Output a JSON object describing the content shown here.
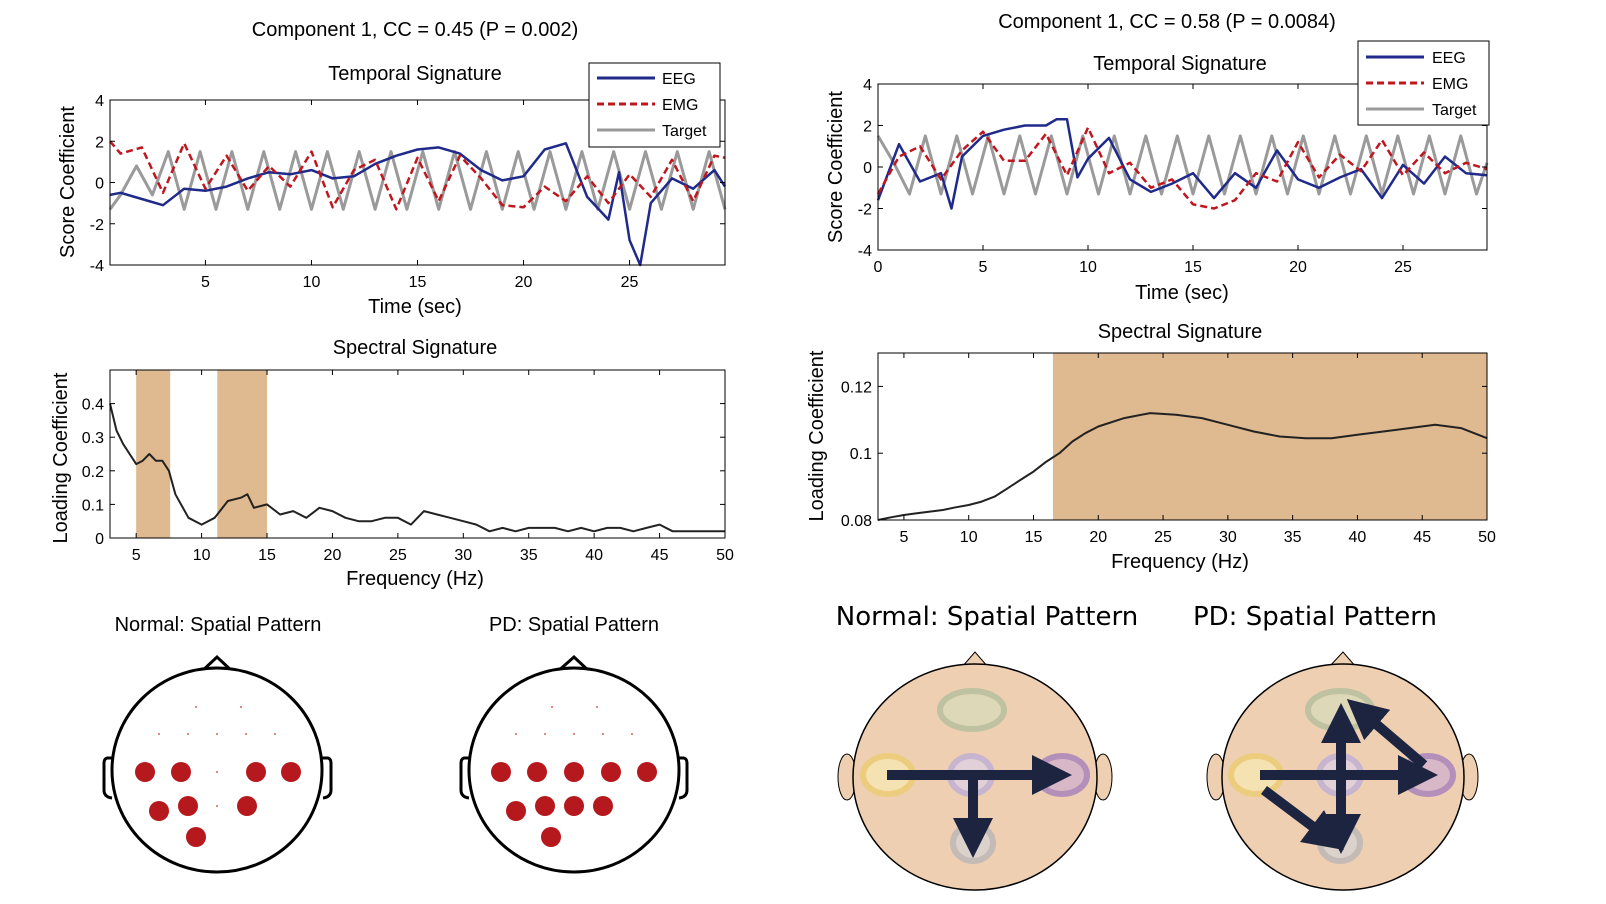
{
  "colors": {
    "eeg": "#1f2a8a",
    "emg": "#c0161e",
    "target": "#9a9a9a",
    "band": "#dfb98f",
    "electrode": "#b5191d",
    "head_fill": "#efcfb1",
    "arrow": "#1c2440"
  },
  "left": {
    "title": "Component 1, CC = 0.45 (P = 0.002)",
    "temporal": {
      "title": "Temporal Signature",
      "xlabel": "Time (sec)",
      "ylabel": "Score Coefficient",
      "xticks": [
        "5",
        "10",
        "15",
        "20",
        "25"
      ],
      "yticks": [
        "4",
        "2",
        "0",
        "-2",
        "-4"
      ],
      "legend": [
        "EEG",
        "EMG",
        "Target"
      ]
    },
    "spectral": {
      "title": "Spectral Signature",
      "xlabel": "Frequency (Hz)",
      "ylabel": "Loading Coefficient",
      "xticks": [
        "5",
        "10",
        "15",
        "20",
        "25",
        "30",
        "35",
        "40",
        "45",
        "50"
      ],
      "yticks": [
        "0.4",
        "0.3",
        "0.2",
        "0.1",
        "0"
      ]
    },
    "maps": {
      "normal": "Normal: Spatial Pattern",
      "pd": "PD: Spatial Pattern"
    }
  },
  "right": {
    "title": "Component 1, CC = 0.58 (P = 0.0084)",
    "temporal": {
      "title": "Temporal Signature",
      "xlabel": "Time (sec)",
      "ylabel": "Score Coefficient",
      "xticks": [
        "0",
        "5",
        "10",
        "15",
        "20",
        "25"
      ],
      "yticks": [
        "4",
        "2",
        "0",
        "-2",
        "-4"
      ],
      "legend": [
        "EEG",
        "EMG",
        "Target"
      ]
    },
    "spectral": {
      "title": "Spectral Signature",
      "xlabel": "Frequency (Hz)",
      "ylabel": "Loading Coefficient",
      "xticks": [
        "5",
        "10",
        "15",
        "20",
        "25",
        "30",
        "35",
        "40",
        "45",
        "50"
      ],
      "yticks": [
        "0.12",
        "0.1",
        "0.08"
      ]
    },
    "maps": {
      "normal": "Normal: Spatial Pattern",
      "pd": "PD: Spatial Pattern"
    }
  },
  "chart_data": [
    {
      "type": "line",
      "panel": "left-temporal",
      "xlim": [
        0.5,
        29.5
      ],
      "ylim": [
        -4,
        4
      ],
      "series": [
        {
          "name": "EEG",
          "x": [
            0.5,
            1,
            2,
            3,
            4,
            5,
            6,
            7,
            8,
            9,
            10,
            11,
            12,
            13,
            14,
            15,
            16,
            17,
            18,
            19,
            20,
            21,
            22,
            23,
            24,
            24.5,
            25,
            25.5,
            26,
            27,
            28,
            29,
            29.5
          ],
          "y": [
            -0.6,
            -0.5,
            -0.8,
            -1.1,
            -0.3,
            -0.4,
            -0.2,
            0.2,
            0.5,
            0.4,
            0.6,
            0.2,
            0.3,
            0.9,
            1.3,
            1.6,
            1.7,
            1.4,
            0.6,
            0.1,
            0.3,
            1.6,
            1.9,
            -0.7,
            -1.8,
            0.5,
            -2.8,
            -4.0,
            -1.0,
            0.2,
            -0.3,
            0.6,
            -0.2
          ]
        },
        {
          "name": "EMG",
          "x": [
            0.5,
            1,
            2,
            3,
            4,
            5,
            6,
            7,
            8,
            9,
            10,
            11,
            12,
            13,
            14,
            15,
            16,
            17,
            18,
            19,
            20,
            21,
            22,
            23,
            24,
            25,
            26,
            27,
            28,
            29,
            29.5
          ],
          "y": [
            2.0,
            1.4,
            1.7,
            -0.5,
            1.9,
            -0.3,
            1.3,
            -0.4,
            0.8,
            -0.2,
            1.5,
            -1.2,
            0.6,
            1.1,
            -1.3,
            1.2,
            -0.9,
            1.3,
            0.2,
            -1.1,
            -1.2,
            -0.2,
            -0.9,
            0.3,
            -1.0,
            0.4,
            -0.7,
            1.1,
            -0.9,
            1.3,
            1.2
          ]
        },
        {
          "name": "Target",
          "x": [
            0.5,
            1,
            1.75,
            2.5,
            3.25,
            4,
            4.75,
            5.5,
            6.25,
            7,
            7.75,
            8.5,
            9.25,
            10,
            10.75,
            11.5,
            12.25,
            13,
            13.75,
            14.5,
            15.25,
            16,
            16.75,
            17.5,
            18.25,
            19,
            19.75,
            20.5,
            21.25,
            22,
            22.75,
            23.5,
            24.25,
            25,
            25.75,
            26.5,
            27.25,
            28,
            28.75,
            29.5
          ],
          "y": [
            -1.3,
            -0.6,
            0.8,
            -0.6,
            1.5,
            -1.3,
            1.5,
            -1.3,
            1.5,
            -1.3,
            1.5,
            -1.3,
            1.5,
            -1.3,
            1.5,
            -1.3,
            1.5,
            -1.3,
            1.5,
            -1.3,
            1.5,
            -1.3,
            1.5,
            -1.3,
            1.5,
            -1.3,
            1.5,
            -1.3,
            1.5,
            -1.3,
            1.5,
            -1.3,
            1.5,
            -1.3,
            1.5,
            -1.3,
            1.5,
            -1.3,
            1.5,
            -1.3
          ]
        }
      ]
    },
    {
      "type": "line",
      "panel": "left-spectral",
      "xlim": [
        3,
        50
      ],
      "ylim": [
        0,
        0.5
      ],
      "shaded_bands": [
        [
          5,
          7.6
        ],
        [
          11.2,
          15
        ]
      ],
      "series": [
        {
          "x": [
            3,
            3.5,
            4,
            5,
            5.5,
            6,
            6.5,
            7,
            7.5,
            8,
            9,
            10,
            11,
            12,
            13,
            13.5,
            14,
            15,
            16,
            17,
            18,
            19,
            20,
            21,
            22,
            23,
            24,
            25,
            26,
            27,
            28,
            29,
            30,
            31,
            32,
            33,
            34,
            35,
            36,
            37,
            38,
            39,
            40,
            41,
            42,
            43,
            44,
            45,
            46,
            47,
            48,
            49,
            50
          ],
          "y": [
            0.4,
            0.32,
            0.28,
            0.22,
            0.23,
            0.25,
            0.23,
            0.23,
            0.2,
            0.13,
            0.06,
            0.04,
            0.06,
            0.11,
            0.12,
            0.13,
            0.09,
            0.1,
            0.07,
            0.08,
            0.06,
            0.09,
            0.08,
            0.06,
            0.05,
            0.05,
            0.06,
            0.06,
            0.04,
            0.08,
            0.07,
            0.06,
            0.05,
            0.04,
            0.02,
            0.03,
            0.02,
            0.03,
            0.03,
            0.03,
            0.02,
            0.03,
            0.02,
            0.03,
            0.03,
            0.02,
            0.03,
            0.04,
            0.02,
            0.02,
            0.02,
            0.02,
            0.02
          ]
        }
      ]
    },
    {
      "type": "line",
      "panel": "right-temporal",
      "xlim": [
        0,
        29
      ],
      "ylim": [
        -4,
        4
      ],
      "series": [
        {
          "name": "EEG",
          "x": [
            0,
            1,
            2,
            3,
            3.5,
            4,
            5,
            6,
            7,
            8,
            8.5,
            9,
            9.5,
            10,
            11,
            12,
            13,
            14,
            15,
            16,
            17,
            18,
            19,
            20,
            21,
            22,
            23,
            24,
            25,
            26,
            27,
            28,
            29
          ],
          "y": [
            -1.6,
            1.1,
            -0.7,
            -0.3,
            -2.0,
            0.5,
            1.5,
            1.8,
            2.0,
            2.0,
            2.3,
            2.3,
            -0.5,
            0.4,
            1.4,
            -0.6,
            -1.2,
            -0.8,
            -0.3,
            -1.5,
            -0.3,
            -1.0,
            0.8,
            -0.6,
            -1.0,
            -0.5,
            -0.1,
            -1.5,
            0.1,
            -0.8,
            0.5,
            -0.3,
            -0.4
          ]
        },
        {
          "name": "EMG",
          "x": [
            0,
            1,
            2,
            3,
            4,
            5,
            6,
            7,
            8,
            9,
            10,
            11,
            12,
            13,
            14,
            15,
            16,
            17,
            18,
            19,
            20,
            21,
            22,
            23,
            24,
            25,
            26,
            27,
            28,
            29
          ],
          "y": [
            -1.3,
            0.5,
            1.0,
            -0.6,
            0.8,
            1.7,
            0.3,
            0.3,
            1.6,
            -0.4,
            1.9,
            -0.3,
            0.2,
            -1.0,
            -0.6,
            -1.8,
            -2.0,
            -1.6,
            -0.3,
            -0.7,
            1.2,
            -0.5,
            0.6,
            -0.2,
            1.3,
            -0.4,
            0.7,
            -0.3,
            0.2,
            -0.1
          ]
        },
        {
          "name": "Target",
          "x": [
            0,
            0.75,
            1.5,
            2.25,
            3,
            3.75,
            4.5,
            5.25,
            6,
            6.75,
            7.5,
            8.25,
            9,
            9.75,
            10.5,
            11.25,
            12,
            12.75,
            13.5,
            14.25,
            15,
            15.75,
            16.5,
            17.25,
            18,
            18.75,
            19.5,
            20.25,
            21,
            21.75,
            22.5,
            23.25,
            24,
            24.75,
            25.5,
            26.25,
            27,
            27.75,
            28.5,
            29
          ],
          "y": [
            1.5,
            0.2,
            -1.3,
            1.5,
            -1.3,
            1.5,
            -1.3,
            1.5,
            -1.3,
            1.5,
            -1.3,
            1.5,
            -1.3,
            1.5,
            -1.3,
            1.5,
            -1.3,
            1.5,
            -1.3,
            1.5,
            -1.3,
            1.5,
            -1.3,
            1.5,
            -1.3,
            1.5,
            -1.3,
            1.5,
            -1.3,
            1.5,
            -1.3,
            1.5,
            -1.3,
            1.5,
            -1.3,
            1.5,
            -1.3,
            1.5,
            -1.3,
            0.2
          ]
        }
      ]
    },
    {
      "type": "line",
      "panel": "right-spectral",
      "xlim": [
        3,
        50
      ],
      "ylim": [
        0.08,
        0.13
      ],
      "shaded_bands": [
        [
          16.5,
          50
        ]
      ],
      "series": [
        {
          "x": [
            3,
            4,
            5,
            6,
            7,
            8,
            9,
            10,
            11,
            12,
            13,
            14,
            15,
            16,
            17,
            18,
            19,
            20,
            22,
            24,
            26,
            28,
            30,
            32,
            34,
            36,
            38,
            40,
            42,
            44,
            46,
            48,
            50
          ],
          "y": [
            0.08,
            0.0808,
            0.0815,
            0.082,
            0.0825,
            0.083,
            0.0838,
            0.0845,
            0.0855,
            0.087,
            0.0895,
            0.092,
            0.0945,
            0.0975,
            0.1,
            0.1035,
            0.106,
            0.108,
            0.1105,
            0.112,
            0.1115,
            0.1105,
            0.1085,
            0.1065,
            0.105,
            0.1045,
            0.1045,
            0.1055,
            0.1065,
            0.1075,
            0.1085,
            0.1075,
            0.1045
          ]
        }
      ]
    }
  ]
}
